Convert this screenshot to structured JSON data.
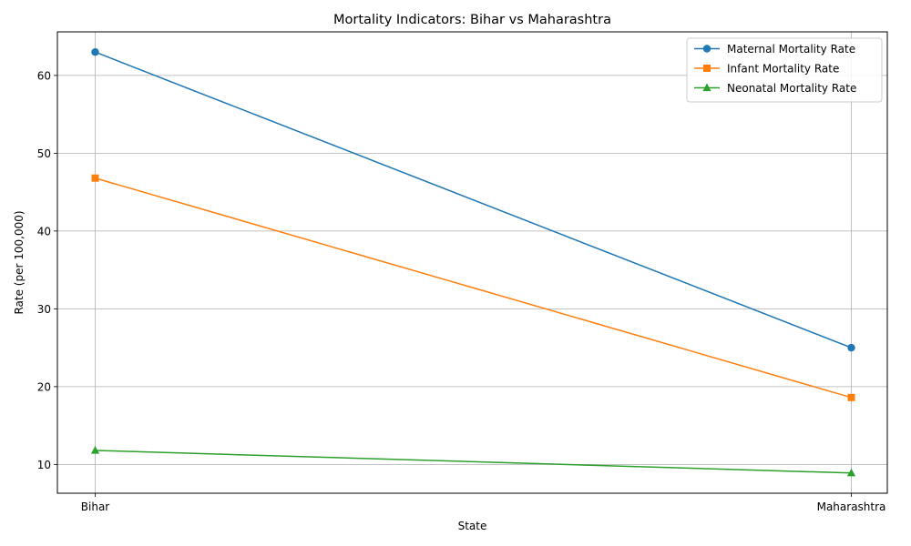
{
  "chart_data": {
    "type": "line",
    "title": "Mortality Indicators: Bihar vs Maharashtra",
    "xlabel": "State",
    "ylabel": "Rate (per 100,000)",
    "categories": [
      "Bihar",
      "Maharashtra"
    ],
    "ylim": [
      6.3,
      65.6
    ],
    "yticks": [
      10,
      20,
      30,
      40,
      50,
      60
    ],
    "grid": true,
    "legend_position": "top-right",
    "series": [
      {
        "name": "Maternal Mortality Rate",
        "values": [
          63.0,
          25.0
        ],
        "color": "#1f77b4",
        "marker": "circle"
      },
      {
        "name": "Infant Mortality Rate",
        "values": [
          46.8,
          18.6
        ],
        "color": "#ff7f0e",
        "marker": "square"
      },
      {
        "name": "Neonatal Mortality Rate",
        "values": [
          11.8,
          8.9
        ],
        "color": "#2ca02c",
        "marker": "triangle"
      }
    ]
  }
}
